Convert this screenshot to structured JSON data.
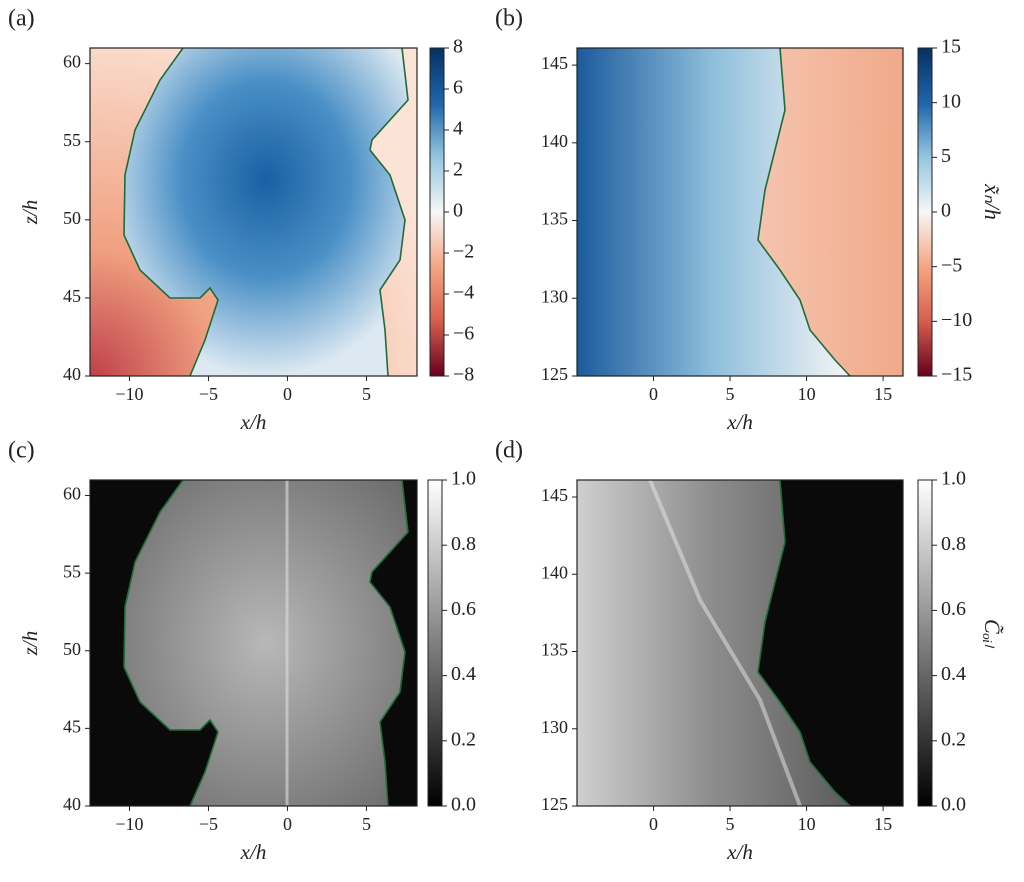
{
  "chart_data": [
    {
      "type": "heatmap",
      "panel_label": "(a)",
      "xlabel": "x/h",
      "ylabel": "z/h",
      "xlim": [
        -12.5,
        8.2
      ],
      "xticks": [
        {
          "value": -10,
          "label": "−10"
        },
        {
          "value": -5,
          "label": "−5"
        },
        0,
        5
      ],
      "ylim": [
        40,
        61
      ],
      "yticks": [
        40,
        45,
        50,
        55,
        60
      ],
      "colorbar": {
        "colormap": "RdBu",
        "lim": [
          -8,
          8
        ],
        "ticks": [
          {
            "value": -8,
            "label": "−8"
          },
          {
            "value": -6,
            "label": "−6"
          },
          {
            "value": -4,
            "label": "−4"
          },
          {
            "value": -2,
            "label": "−2"
          },
          0,
          2,
          4,
          6,
          8
        ]
      }
    },
    {
      "type": "heatmap",
      "panel_label": "(b)",
      "xlabel": "x/h",
      "xlim": [
        -5,
        16.3
      ],
      "xticks": [
        0,
        5,
        10,
        15
      ],
      "ylim": [
        125,
        146.1
      ],
      "yticks": [
        125,
        130,
        135,
        140,
        145
      ],
      "colorbar": {
        "colormap": "RdBu",
        "lim": [
          -15,
          15
        ],
        "label": "x̃ₙ/h",
        "ticks": [
          {
            "value": -15,
            "label": "−15"
          },
          {
            "value": -10,
            "label": "−10"
          },
          {
            "value": -5,
            "label": "−5"
          },
          0,
          5,
          10,
          15
        ]
      }
    },
    {
      "type": "heatmap",
      "panel_label": "(c)",
      "xlabel": "x/h",
      "ylabel": "z/h",
      "xlim": [
        -12.5,
        8.2
      ],
      "xticks": [
        {
          "value": -10,
          "label": "−10"
        },
        {
          "value": -5,
          "label": "−5"
        },
        0,
        5
      ],
      "ylim": [
        40,
        61
      ],
      "yticks": [
        40,
        45,
        50,
        55,
        60
      ],
      "colorbar": {
        "colormap": "gray",
        "lim": [
          0,
          1
        ],
        "ticks": [
          {
            "value": 0,
            "label": "0.0"
          },
          0.2,
          0.4,
          0.6,
          0.8,
          {
            "value": 1,
            "label": "1.0"
          }
        ]
      }
    },
    {
      "type": "heatmap",
      "panel_label": "(d)",
      "xlabel": "x/h",
      "xlim": [
        -5,
        16.3
      ],
      "xticks": [
        0,
        5,
        10,
        15
      ],
      "ylim": [
        125,
        146.1
      ],
      "yticks": [
        125,
        130,
        135,
        140,
        145
      ],
      "colorbar": {
        "colormap": "gray",
        "lim": [
          0,
          1
        ],
        "label": "C̃ₒᵢₗ",
        "ticks": [
          {
            "value": 0,
            "label": "0.0"
          },
          0.2,
          0.4,
          0.6,
          0.8,
          {
            "value": 1,
            "label": "1.0"
          }
        ]
      }
    }
  ]
}
